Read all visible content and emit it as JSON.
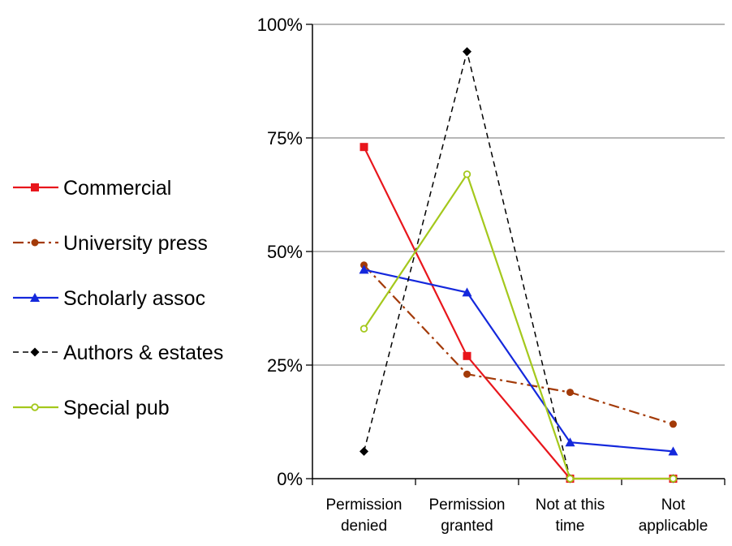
{
  "chart_data": {
    "type": "line",
    "title": "",
    "xlabel": "",
    "ylabel": "",
    "ylim": [
      0,
      100
    ],
    "y_ticks": [
      "0%",
      "25%",
      "50%",
      "75%",
      "100%"
    ],
    "y_tick_values": [
      0,
      25,
      50,
      75,
      100
    ],
    "categories": [
      [
        "Permission",
        "denied"
      ],
      [
        "Permission",
        "granted"
      ],
      [
        "Not at this",
        "time"
      ],
      [
        "Not",
        "applicable"
      ]
    ],
    "grid": true,
    "legend_position": "left",
    "series": [
      {
        "name": "Commercial",
        "values": [
          73,
          27,
          0,
          0
        ],
        "color": "#e8161c",
        "dash": "solid",
        "marker": "square"
      },
      {
        "name": "University press",
        "values": [
          47,
          23,
          19,
          12
        ],
        "color": "#a33a08",
        "dash": "dashdot",
        "marker": "circle"
      },
      {
        "name": "Scholarly assoc",
        "values": [
          46,
          41,
          8,
          6
        ],
        "color": "#1428dc",
        "dash": "solid",
        "marker": "triangle"
      },
      {
        "name": "Authors & estates",
        "values": [
          6,
          94,
          0,
          0
        ],
        "color": "#000000",
        "dash": "dashed",
        "marker": "diamond"
      },
      {
        "name": "Special pub",
        "values": [
          33,
          67,
          0,
          0
        ],
        "color": "#a4c81c",
        "dash": "solid",
        "marker": "hollow-circle"
      }
    ]
  }
}
